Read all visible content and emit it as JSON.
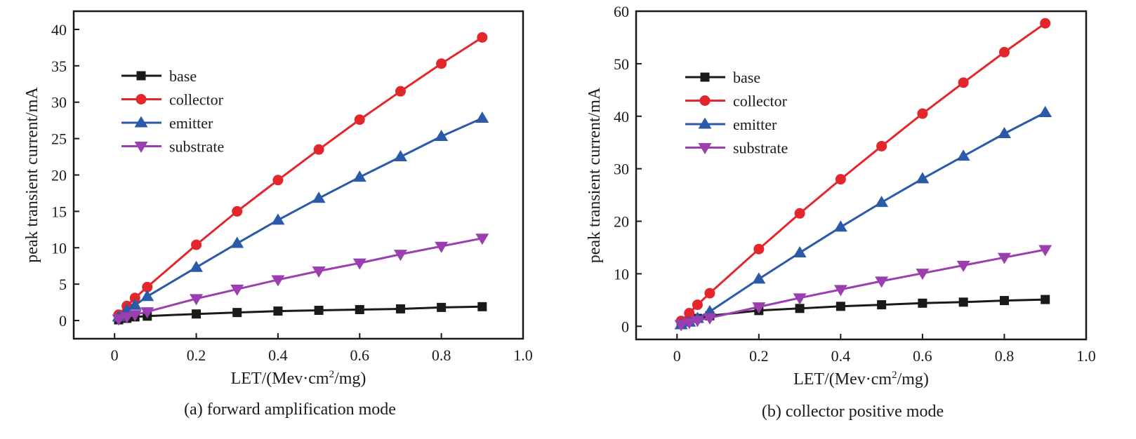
{
  "chart_data": [
    {
      "type": "line",
      "caption": "(a) forward amplification mode",
      "xlabel": "LET/(Mev·cm²/mg)",
      "ylabel": "peak transient current/mA",
      "xlim": [
        -0.1,
        1.0
      ],
      "ylim": [
        -2.5,
        42.5
      ],
      "xticks": [
        0,
        0.2,
        0.4,
        0.6,
        0.8,
        1.0
      ],
      "xtick_labels": [
        "0",
        "0.2",
        "0.4",
        "0.6",
        "0.8",
        "1.0"
      ],
      "yticks": [
        0,
        5,
        10,
        15,
        20,
        25,
        30,
        35,
        40
      ],
      "ytick_labels": [
        "0",
        "5",
        "10",
        "15",
        "20",
        "25",
        "30",
        "35",
        "40"
      ],
      "grid": false,
      "legend_position": "upper-left",
      "x": [
        0.01,
        0.03,
        0.05,
        0.08,
        0.2,
        0.3,
        0.4,
        0.5,
        0.6,
        0.7,
        0.8,
        0.9
      ],
      "series": [
        {
          "name": "base",
          "color": "#1a1a1a",
          "marker": "square",
          "values": [
            0.1,
            0.3,
            0.5,
            0.6,
            0.9,
            1.1,
            1.3,
            1.4,
            1.5,
            1.6,
            1.8,
            1.9
          ]
        },
        {
          "name": "collector",
          "color": "#e3262b",
          "marker": "circle",
          "values": [
            0.8,
            2.0,
            3.1,
            4.6,
            10.4,
            15.0,
            19.3,
            23.5,
            27.6,
            31.5,
            35.3,
            38.9
          ]
        },
        {
          "name": "emitter",
          "color": "#2a5aa8",
          "marker": "triangle-up",
          "values": [
            0.5,
            1.4,
            2.1,
            3.3,
            7.3,
            10.6,
            13.8,
            16.8,
            19.7,
            22.5,
            25.3,
            27.8
          ]
        },
        {
          "name": "substrate",
          "color": "#9b3fb0",
          "marker": "triangle-down",
          "values": [
            0.2,
            0.5,
            0.8,
            1.2,
            3.0,
            4.3,
            5.6,
            6.8,
            7.9,
            9.1,
            10.2,
            11.3
          ]
        }
      ]
    },
    {
      "type": "line",
      "caption": "(b) collector positive mode",
      "xlabel": "LET/(Mev·cm²/mg)",
      "ylabel": "peak transient current/mA",
      "xlim": [
        -0.1,
        1.0
      ],
      "ylim": [
        -2.5,
        60
      ],
      "xticks": [
        0,
        0.2,
        0.4,
        0.6,
        0.8,
        1.0
      ],
      "xtick_labels": [
        "0",
        "0.2",
        "0.4",
        "0.6",
        "0.8",
        "1.0"
      ],
      "yticks": [
        0,
        10,
        20,
        30,
        40,
        50,
        60
      ],
      "ytick_labels": [
        "0",
        "10",
        "20",
        "30",
        "40",
        "50",
        "60"
      ],
      "grid": false,
      "legend_position": "upper-left",
      "x": [
        0.01,
        0.03,
        0.05,
        0.08,
        0.2,
        0.3,
        0.4,
        0.5,
        0.6,
        0.7,
        0.8,
        0.9
      ],
      "series": [
        {
          "name": "base",
          "color": "#1a1a1a",
          "marker": "square",
          "values": [
            0.5,
            1.0,
            1.5,
            2.0,
            3.0,
            3.4,
            3.8,
            4.1,
            4.4,
            4.6,
            4.9,
            5.1
          ]
        },
        {
          "name": "collector",
          "color": "#e3262b",
          "marker": "circle",
          "values": [
            1.0,
            2.5,
            4.1,
            6.3,
            14.7,
            21.5,
            28.0,
            34.3,
            40.5,
            46.4,
            52.2,
            57.7
          ]
        },
        {
          "name": "emitter",
          "color": "#2a5aa8",
          "marker": "triangle-up",
          "values": [
            0.3,
            0.8,
            1.5,
            2.8,
            9.0,
            14.0,
            18.9,
            23.6,
            28.1,
            32.4,
            36.7,
            40.7
          ]
        },
        {
          "name": "substrate",
          "color": "#9b3fb0",
          "marker": "triangle-down",
          "values": [
            0.3,
            0.7,
            1.1,
            1.6,
            3.7,
            5.4,
            7.0,
            8.6,
            10.1,
            11.6,
            13.1,
            14.6
          ]
        }
      ]
    }
  ]
}
